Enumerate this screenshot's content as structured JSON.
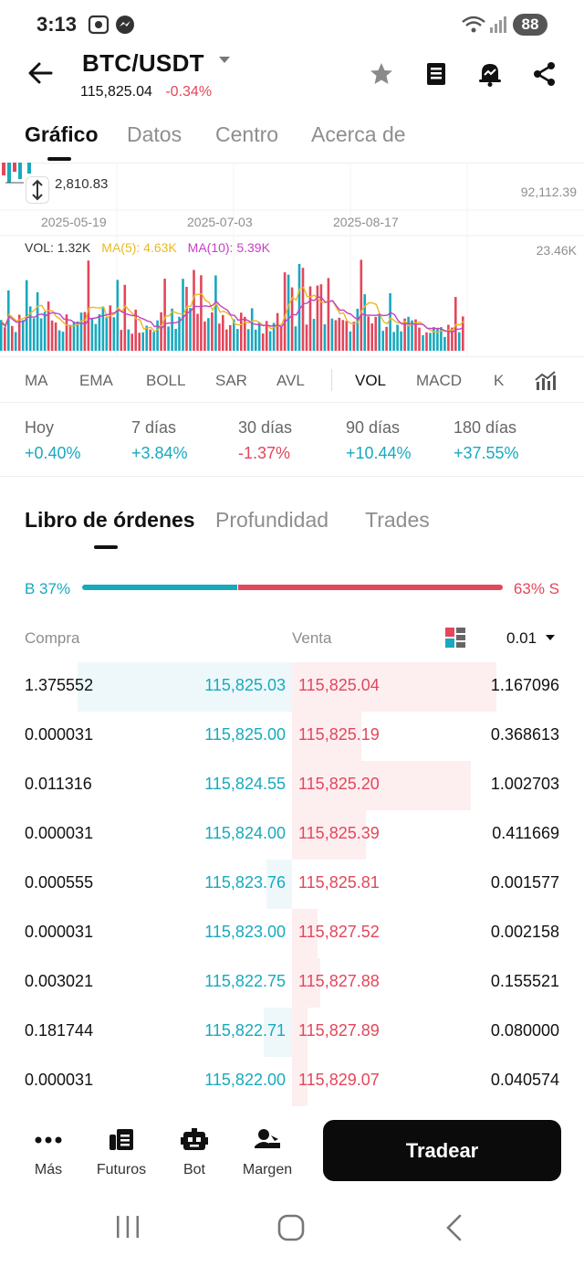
{
  "status_bar": {
    "time": "3:13",
    "battery": "88"
  },
  "header": {
    "pair": "BTC/USDT",
    "price": "115,825.04",
    "change": "-0.34%",
    "icons": [
      "back-arrow-icon",
      "star-icon",
      "notebook-icon",
      "alert-bell-icon",
      "share-icon"
    ]
  },
  "tabs": [
    "Gráfico",
    "Datos",
    "Centro",
    "Acerca de"
  ],
  "chart": {
    "price_label": "2,810.83",
    "right_price": "92,112.39",
    "dates": [
      "2025-05-19",
      "2025-07-03",
      "2025-08-17"
    ],
    "vol_legend": {
      "vol": "VOL: 1.32K",
      "ma5": "MA(5): 4.63K",
      "ma10": "MA(10): 5.39K"
    },
    "vol_max": "23.46K",
    "colors": {
      "up": "#18a9bf",
      "down": "#e2475b",
      "ma5": "#e8b923",
      "ma10": "#c63fc4"
    }
  },
  "indicators": [
    "MA",
    "EMA",
    "BOLL",
    "SAR",
    "AVL",
    "VOL",
    "MACD",
    "K"
  ],
  "performance": [
    {
      "label": "Hoy",
      "value": "+0.40%",
      "dir": "up"
    },
    {
      "label": "7 días",
      "value": "+3.84%",
      "dir": "up"
    },
    {
      "label": "30 días",
      "value": "-1.37%",
      "dir": "down"
    },
    {
      "label": "90 días",
      "value": "+10.44%",
      "dir": "up"
    },
    {
      "label": "180 días",
      "value": "+37.55%",
      "dir": "up"
    }
  ],
  "order_book": {
    "tabs": [
      "Libro de órdenes",
      "Profundidad",
      "Trades"
    ],
    "buy_ratio": "B 37%",
    "sell_ratio": "63% S",
    "buy_fraction": 0.37,
    "col_buy": "Compra",
    "col_sell": "Venta",
    "precision": "0.01",
    "rows": [
      {
        "bqty": "1.375552",
        "bpx": "115,825.03",
        "spx": "115,825.04",
        "sqty": "1.167096",
        "bdepth": 0.84,
        "sdepth": 0.8
      },
      {
        "bqty": "0.000031",
        "bpx": "115,825.00",
        "spx": "115,825.19",
        "sqty": "0.368613",
        "bdepth": 0,
        "sdepth": 0.27
      },
      {
        "bqty": "0.011316",
        "bpx": "115,824.55",
        "spx": "115,825.20",
        "sqty": "1.002703",
        "bdepth": 0,
        "sdepth": 0.7
      },
      {
        "bqty": "0.000031",
        "bpx": "115,824.00",
        "spx": "115,825.39",
        "sqty": "0.411669",
        "bdepth": 0,
        "sdepth": 0.29
      },
      {
        "bqty": "0.000555",
        "bpx": "115,823.76",
        "spx": "115,825.81",
        "sqty": "0.001577",
        "bdepth": 0.1,
        "sdepth": 0
      },
      {
        "bqty": "0.000031",
        "bpx": "115,823.00",
        "spx": "115,827.52",
        "sqty": "0.002158",
        "bdepth": 0,
        "sdepth": 0.1
      },
      {
        "bqty": "0.003021",
        "bpx": "115,822.75",
        "spx": "115,827.88",
        "sqty": "0.155521",
        "bdepth": 0,
        "sdepth": 0.11
      },
      {
        "bqty": "0.181744",
        "bpx": "115,822.71",
        "spx": "115,827.89",
        "sqty": "0.080000",
        "bdepth": 0.11,
        "sdepth": 0.06
      },
      {
        "bqty": "0.000031",
        "bpx": "115,822.00",
        "spx": "115,829.07",
        "sqty": "0.040574",
        "bdepth": 0,
        "sdepth": 0.06
      }
    ]
  },
  "bottom_bar": {
    "items": [
      {
        "label": "Más",
        "icon": "more-dots-icon"
      },
      {
        "label": "Futuros",
        "icon": "futures-icon"
      },
      {
        "label": "Bot",
        "icon": "bot-icon"
      },
      {
        "label": "Margen",
        "icon": "margin-icon"
      }
    ],
    "trade_label": "Tradear"
  }
}
